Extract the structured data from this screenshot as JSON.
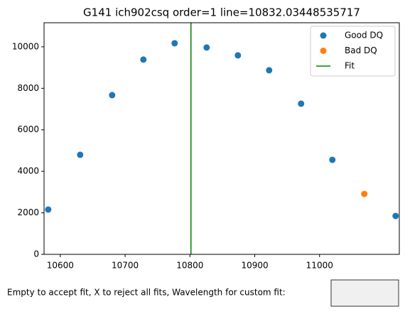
{
  "chart_data": {
    "type": "scatter",
    "title": "G141 ich902csq order=1 line=10832.03448535717",
    "series": [
      {
        "name": "Good DQ",
        "color": "#1f77b4",
        "x": [
          10581.4,
          10630.7,
          10680,
          10728.2,
          10776.4,
          10825.8,
          10874,
          10922.2,
          10971.5,
          11019.7,
          11117.3
        ],
        "values": [
          2158,
          4795,
          7671,
          9384,
          10171,
          9966,
          9589,
          8870,
          7260,
          4555,
          1849
        ]
      },
      {
        "name": "Bad DQ",
        "color": "#ff7f0e",
        "x": [
          11069
        ],
        "values": [
          2911
        ]
      },
      {
        "name": "Fit",
        "color": "#008000",
        "vline": 10801.6
      }
    ],
    "xlim": [
      10575,
      11123
    ],
    "ylim": [
      0,
      11160
    ],
    "xticks": [
      10600,
      10700,
      10800,
      10900,
      11000
    ],
    "yticks": [
      0,
      2000,
      4000,
      6000,
      8000,
      10000
    ],
    "legend": "upper right"
  },
  "prompt": {
    "label": "Empty to accept fit, X to reject all fits, Wavelength for custom fit:"
  }
}
